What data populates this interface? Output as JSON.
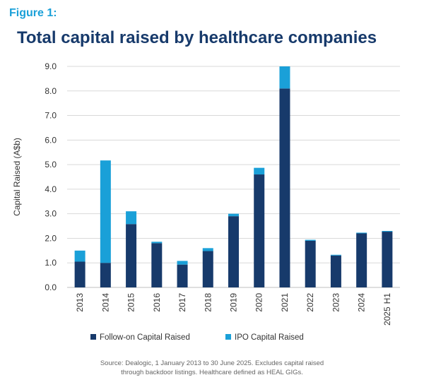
{
  "figure_label": "Figure 1:",
  "chart_data": {
    "type": "bar",
    "stacked": true,
    "title": "Total capital raised by healthcare companies",
    "ylabel": "Capital Raised (A$b)",
    "xlabel": "",
    "ylim": [
      0,
      9
    ],
    "yticks": [
      "0.0",
      "1.0",
      "2.0",
      "3.0",
      "4.0",
      "5.0",
      "6.0",
      "7.0",
      "8.0",
      "9.0"
    ],
    "grid": true,
    "legend_position": "bottom",
    "categories": [
      "2013",
      "2014",
      "2015",
      "2016",
      "2017",
      "2018",
      "2019",
      "2020",
      "2021",
      "2022",
      "2023",
      "2024",
      "H1 2025"
    ],
    "series": [
      {
        "name": "Follow-on Capital Raised",
        "color": "#173a6b",
        "values": [
          1.05,
          1.0,
          2.58,
          1.8,
          0.93,
          1.48,
          2.9,
          4.6,
          8.1,
          1.9,
          1.3,
          2.2,
          2.27
        ]
      },
      {
        "name": "IPO Capital Raised",
        "color": "#1aa0d8",
        "values": [
          0.45,
          4.17,
          0.52,
          0.06,
          0.15,
          0.12,
          0.1,
          0.27,
          0.9,
          0.04,
          0.03,
          0.03,
          0.03
        ]
      }
    ]
  },
  "source_lines": [
    "Source: Dealogic, 1 January 2013 to 30 June 2025. Excludes capital raised",
    "through backdoor listings. Healthcare defined as HEAL GIGs."
  ]
}
